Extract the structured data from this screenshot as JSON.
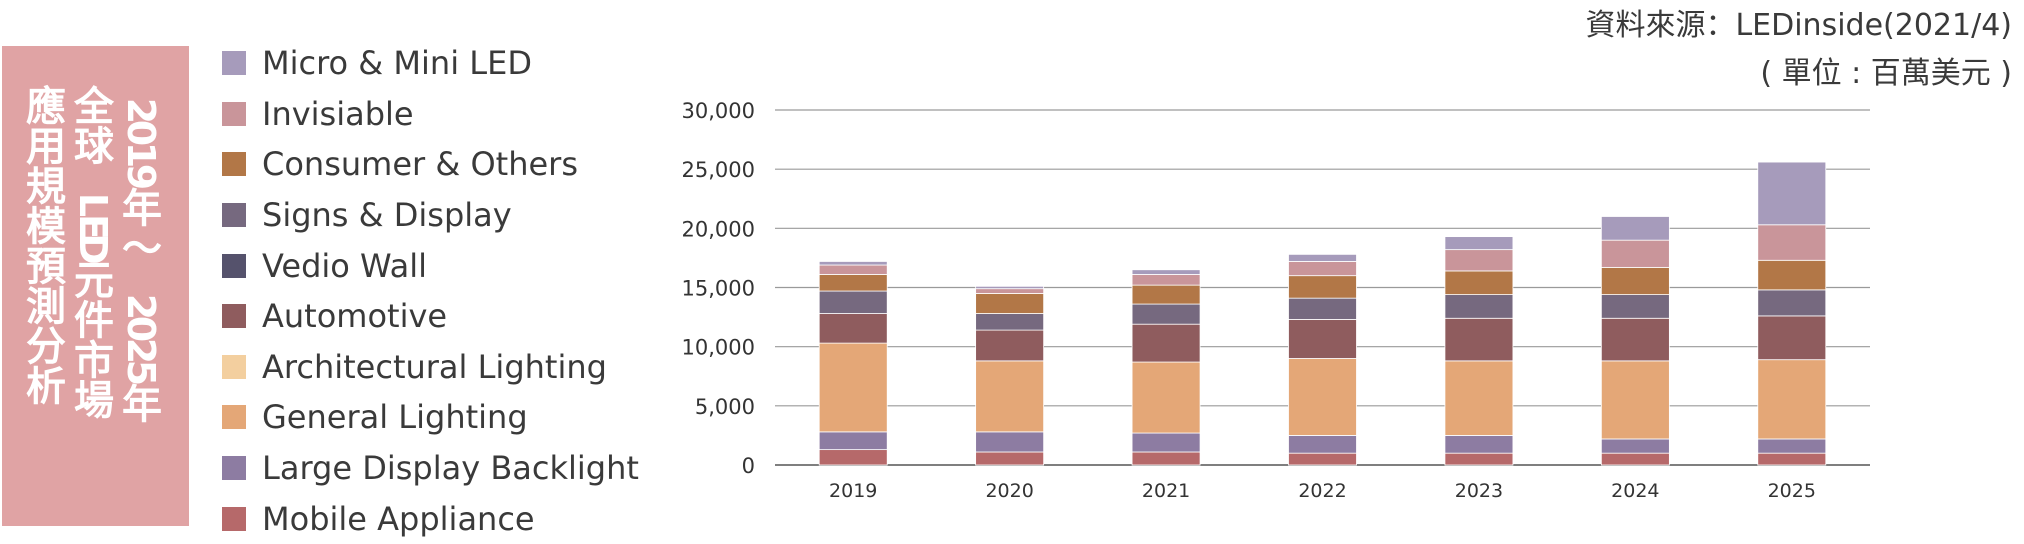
{
  "source": {
    "line1": "資料來源：LEDinside(2021/4)",
    "line2": "( 單位 : 百萬美元 )"
  },
  "title_box": {
    "title": "2019 年～ 2025 年全球 LED 元件市場應用規模預測分析",
    "column_texts": [
      "2019 年～ 2025 年",
      "全球 LED 元件市場",
      "應用規模預測分析"
    ],
    "background": "#e0a3a4",
    "text_color": "#ffffff"
  },
  "legend": [
    {
      "label": "Micro & Mini LED",
      "color": "#a69bbb"
    },
    {
      "label": "Invisiable",
      "color": "#c9959a"
    },
    {
      "label": "Consumer & Others",
      "color": "#b27747"
    },
    {
      "label": "Signs & Display",
      "color": "#76697f"
    },
    {
      "label": "Vedio Wall",
      "color": "#55526c"
    },
    {
      "label": "Automotive",
      "color": "#8f5c5e"
    },
    {
      "label": "Architectural Lighting",
      "color": "#f3cf9f"
    },
    {
      "label": "General Lighting",
      "color": "#e4a777"
    },
    {
      "label": "Large Display Backlight",
      "color": "#8d7ca2"
    },
    {
      "label": "Mobile Appliance",
      "color": "#b6696a"
    }
  ],
  "chart_data": {
    "type": "bar",
    "stacked": true,
    "categories": [
      "2019",
      "2020",
      "2021",
      "2022",
      "2023",
      "2024",
      "2025"
    ],
    "ylim": [
      0,
      30000
    ],
    "yticks": [
      "0",
      "5,000",
      "10,000",
      "15,000",
      "20,000",
      "25,000",
      "30,000"
    ],
    "grid": true,
    "series": [
      {
        "name": "Mobile Appliance",
        "color": "#b6696a",
        "values": [
          1300,
          1100,
          1100,
          1000,
          1000,
          1000,
          1000
        ]
      },
      {
        "name": "Large Display Backlight",
        "color": "#8d7ca2",
        "values": [
          1500,
          1700,
          1600,
          1500,
          1500,
          1200,
          1200
        ]
      },
      {
        "name": "General Lighting",
        "color": "#e4a777",
        "values": [
          7500,
          6000,
          6000,
          6500,
          6300,
          6600,
          6700
        ]
      },
      {
        "name": "Architectural Lighting",
        "color": "#f3cf9f",
        "values": [
          0,
          0,
          0,
          0,
          0,
          0,
          0
        ]
      },
      {
        "name": "Automotive",
        "color": "#8f5c5e",
        "values": [
          2500,
          2600,
          3200,
          3300,
          3600,
          3600,
          3700
        ]
      },
      {
        "name": "Vedio Wall",
        "color": "#55526c",
        "values": [
          0,
          0,
          0,
          0,
          0,
          0,
          0
        ]
      },
      {
        "name": "Signs & Display",
        "color": "#76697f",
        "values": [
          1900,
          1400,
          1700,
          1800,
          2000,
          2000,
          2200
        ]
      },
      {
        "name": "Consumer & Others",
        "color": "#b27747",
        "values": [
          1400,
          1700,
          1600,
          1900,
          2000,
          2300,
          2500
        ]
      },
      {
        "name": "Invisiable",
        "color": "#c9959a",
        "values": [
          800,
          400,
          900,
          1200,
          1800,
          2300,
          3000
        ]
      },
      {
        "name": "Micro & Mini LED",
        "color": "#a69bbb",
        "values": [
          300,
          200,
          400,
          600,
          1100,
          2000,
          5300
        ]
      }
    ]
  }
}
